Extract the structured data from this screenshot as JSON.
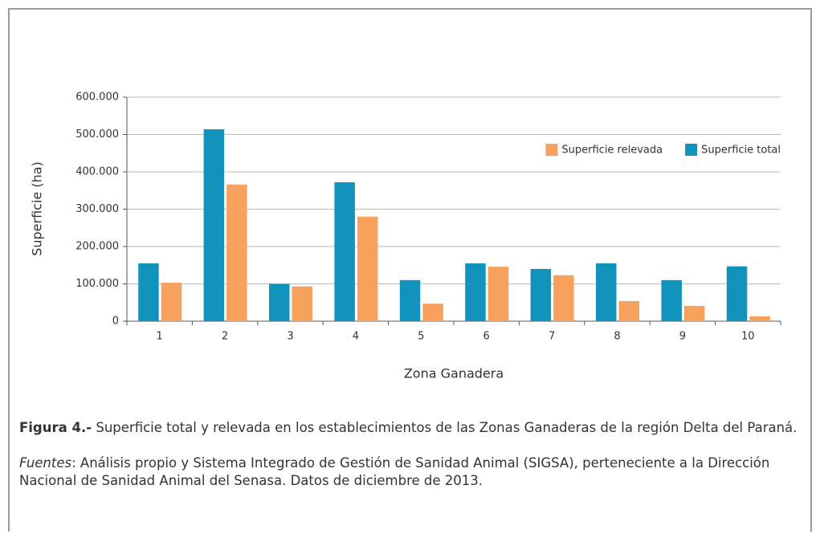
{
  "chart_data": {
    "type": "bar",
    "xlabel": "Zona Ganadera",
    "ylabel": "Superficie (ha)",
    "categories": [
      "1",
      "2",
      "3",
      "4",
      "5",
      "6",
      "7",
      "8",
      "9",
      "10"
    ],
    "series": [
      {
        "name": "Superficie total",
        "color": "#1193bd",
        "values": [
          155000,
          514000,
          100000,
          372000,
          110000,
          155000,
          140000,
          155000,
          110000,
          147000
        ]
      },
      {
        "name": "Superficie relevada",
        "color": "#f6a15e",
        "values": [
          103000,
          366000,
          93000,
          280000,
          47000,
          146000,
          123000,
          54000,
          41000,
          13000
        ]
      }
    ],
    "ylim": [
      0,
      600000
    ],
    "yticks": [
      0,
      {
        "value": 100000,
        "label": "100.000"
      },
      {
        "value": 200000,
        "label": "200.000"
      },
      {
        "value": 300000,
        "label": "300.000"
      },
      {
        "value": 400000,
        "label": "400.000"
      },
      {
        "value": 500000,
        "label": "500.000"
      },
      {
        "value": 600000,
        "label": "600.000"
      }
    ],
    "grid": true,
    "legend": "upper right"
  },
  "caption": {
    "figure_label": "Figura 4.-",
    "text": " Superficie total y relevada en los establecimientos de las Zonas Ganaderas de la región Delta del Paraná.",
    "source_label": "Fuentes",
    "source_text": ": Análisis propio y Sistema Integrado de Gestión de Sanidad Animal (SIGSA), perteneciente a la Dirección Nacional de Sanidad Animal del Senasa. Datos de diciembre de 2013."
  }
}
